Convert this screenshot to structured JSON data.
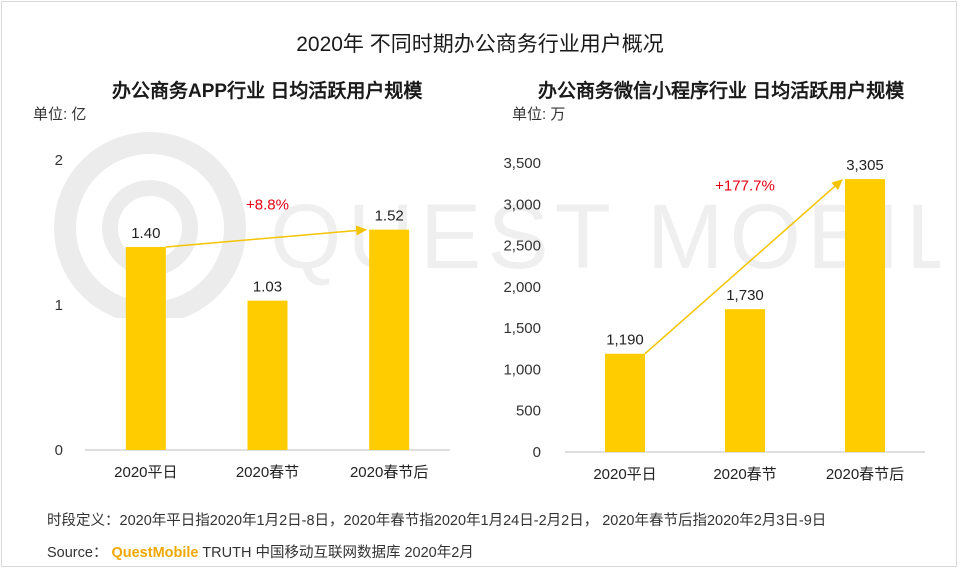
{
  "title": "2020年 不同时期办公商务行业用户概况",
  "watermark_text": "QUEST MOBILE",
  "colors": {
    "bar": "#FFCC00",
    "arrow": "#F5C400",
    "growth": "#E60012",
    "brand": "#F0A800"
  },
  "footnote": {
    "definition": "时段定义：2020年平日指2020年1月2日-8日，2020年春节指2020年1月24日-2月2日， 2020年春节后指2020年2月3日-9日",
    "source_label": "Source：",
    "source_brand": "QuestMobile",
    "source_rest": "TRUTH 中国移动互联网数据库 2020年2月"
  },
  "chart_data": [
    {
      "type": "bar",
      "title": "办公商务APP行业 日均活跃用户规模",
      "unit": "单位: 亿",
      "categories": [
        "2020平日",
        "2020春节",
        "2020春节后"
      ],
      "values": [
        1.4,
        1.03,
        1.52
      ],
      "value_labels": [
        "1.40",
        "1.03",
        "1.52"
      ],
      "ylim": [
        0,
        2
      ],
      "yticks": [
        0,
        1,
        2
      ],
      "ytick_labels": [
        "0",
        "1",
        "2"
      ],
      "grid": false,
      "annotation": {
        "text": "+8.8%",
        "from_index": 0,
        "to_index": 2
      }
    },
    {
      "type": "bar",
      "title": "办公商务微信小程序行业 日均活跃用户规模",
      "unit": "单位: 万",
      "categories": [
        "2020平日",
        "2020春节",
        "2020春节后"
      ],
      "values": [
        1190,
        1730,
        3305
      ],
      "value_labels": [
        "1,190",
        "1,730",
        "3,305"
      ],
      "ylim": [
        0,
        3500
      ],
      "yticks": [
        0,
        500,
        1000,
        1500,
        2000,
        2500,
        3000,
        3500
      ],
      "ytick_labels": [
        "0",
        "500",
        "1,000",
        "1,500",
        "2,000",
        "2,500",
        "3,000",
        "3,500"
      ],
      "grid": false,
      "annotation": {
        "text": "+177.7%",
        "from_index": 0,
        "to_index": 2
      }
    }
  ]
}
